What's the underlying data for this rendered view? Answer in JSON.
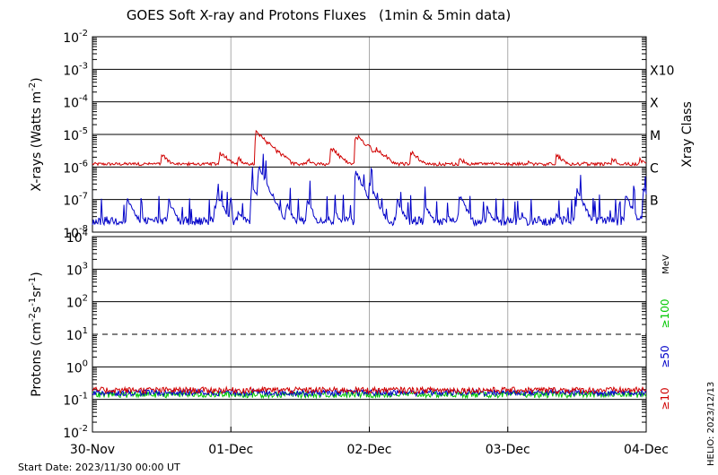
{
  "title": "GOES Soft X-ray and Protons Fluxes",
  "subtitle": "(1min & 5min data)",
  "start_date": "Start Date: 2023/11/30 00:00 UT",
  "credit": "HELIO: 2023/12/13",
  "chart_data": [
    {
      "type": "line",
      "name": "xray",
      "ylabel_text": "X-rays (Watts m",
      "ylabel_exp": "-2",
      "ylabel_close": ")",
      "yscale": "log",
      "ylim": [
        1e-08,
        0.01
      ],
      "y_ticks": [
        {
          "base": "10",
          "exp": "-2"
        },
        {
          "base": "10",
          "exp": "-3"
        },
        {
          "base": "10",
          "exp": "-4"
        },
        {
          "base": "10",
          "exp": "-5"
        },
        {
          "base": "10",
          "exp": "-6"
        },
        {
          "base": "10",
          "exp": "-7"
        },
        {
          "base": "10",
          "exp": "-8"
        }
      ],
      "right_axis_label": "Xray Class",
      "classes": [
        {
          "label": "X10",
          "flux": 0.001
        },
        {
          "label": "X",
          "flux": 0.0001
        },
        {
          "label": "M",
          "flux": 1e-05
        },
        {
          "label": "C",
          "flux": 1e-06
        },
        {
          "label": "B",
          "flux": 1e-07
        }
      ],
      "x_days": [
        0,
        4
      ],
      "series": [
        {
          "name": "long",
          "color": "#d00000",
          "baseline": 1.1e-06,
          "events": [
            [
              0.3,
              1.4e-06
            ],
            [
              0.5,
              2.5e-06
            ],
            [
              0.6,
              1.5e-06
            ],
            [
              0.92,
              3e-06
            ],
            [
              1.05,
              2e-06
            ],
            [
              1.18,
              1.2e-05
            ],
            [
              1.35,
              3e-06
            ],
            [
              1.55,
              2e-06
            ],
            [
              1.72,
              4e-06
            ],
            [
              1.9,
              1e-05
            ],
            [
              2.05,
              4e-06
            ],
            [
              2.3,
              3e-06
            ],
            [
              2.65,
              2e-06
            ],
            [
              3.15,
              1.5e-06
            ],
            [
              3.35,
              2.5e-06
            ],
            [
              3.55,
              1.5e-06
            ],
            [
              3.75,
              2e-06
            ],
            [
              3.95,
              1.8e-06
            ]
          ]
        },
        {
          "name": "short",
          "color": "#0000c8",
          "baseline": 1.6e-08,
          "events": [
            [
              0.25,
              1.2e-07
            ],
            [
              0.55,
              1e-07
            ],
            [
              0.9,
              1.5e-07
            ],
            [
              1.05,
              5e-08
            ],
            [
              1.15,
              3e-07
            ],
            [
              1.2,
              1.1e-06
            ],
            [
              1.4,
              8e-08
            ],
            [
              1.55,
              1e-07
            ],
            [
              1.75,
              5e-08
            ],
            [
              1.9,
              8e-07
            ],
            [
              2.0,
              3e-07
            ],
            [
              2.2,
              1e-07
            ],
            [
              2.4,
              8e-08
            ],
            [
              2.65,
              1.5e-07
            ],
            [
              2.85,
              6e-08
            ],
            [
              3.1,
              4e-08
            ],
            [
              3.35,
              4e-08
            ],
            [
              3.5,
              2e-07
            ],
            [
              3.85,
              1.5e-07
            ],
            [
              3.98,
              2e-07
            ]
          ]
        }
      ]
    },
    {
      "type": "line",
      "name": "protons",
      "ylabel_text": "Protons (cm",
      "ylabel_exp1": "-2",
      "ylabel_mid": "s",
      "ylabel_exp2": "-1",
      "ylabel_mid2": "sr",
      "ylabel_exp3": "-1",
      "ylabel_close": ")",
      "yscale": "log",
      "ylim": [
        0.01,
        10000.0
      ],
      "y_ticks": [
        {
          "base": "10",
          "exp": "4"
        },
        {
          "base": "10",
          "exp": "3"
        },
        {
          "base": "10",
          "exp": "2"
        },
        {
          "base": "10",
          "exp": "1"
        },
        {
          "base": "10",
          "exp": "0"
        },
        {
          "base": "10",
          "exp": "-1"
        },
        {
          "base": "10",
          "exp": "-2"
        }
      ],
      "threshold": 10,
      "unit": "MeV",
      "series": [
        {
          "name": "≥100",
          "color": "#00c800",
          "level": 0.14
        },
        {
          "name": "≥50",
          "color": "#0000c8",
          "level": 0.16
        },
        {
          "name": "≥10",
          "color": "#d00000",
          "level": 0.19
        }
      ]
    }
  ],
  "x_ticks": [
    "30-Nov",
    "01-Dec",
    "02-Dec",
    "03-Dec",
    "04-Dec"
  ]
}
